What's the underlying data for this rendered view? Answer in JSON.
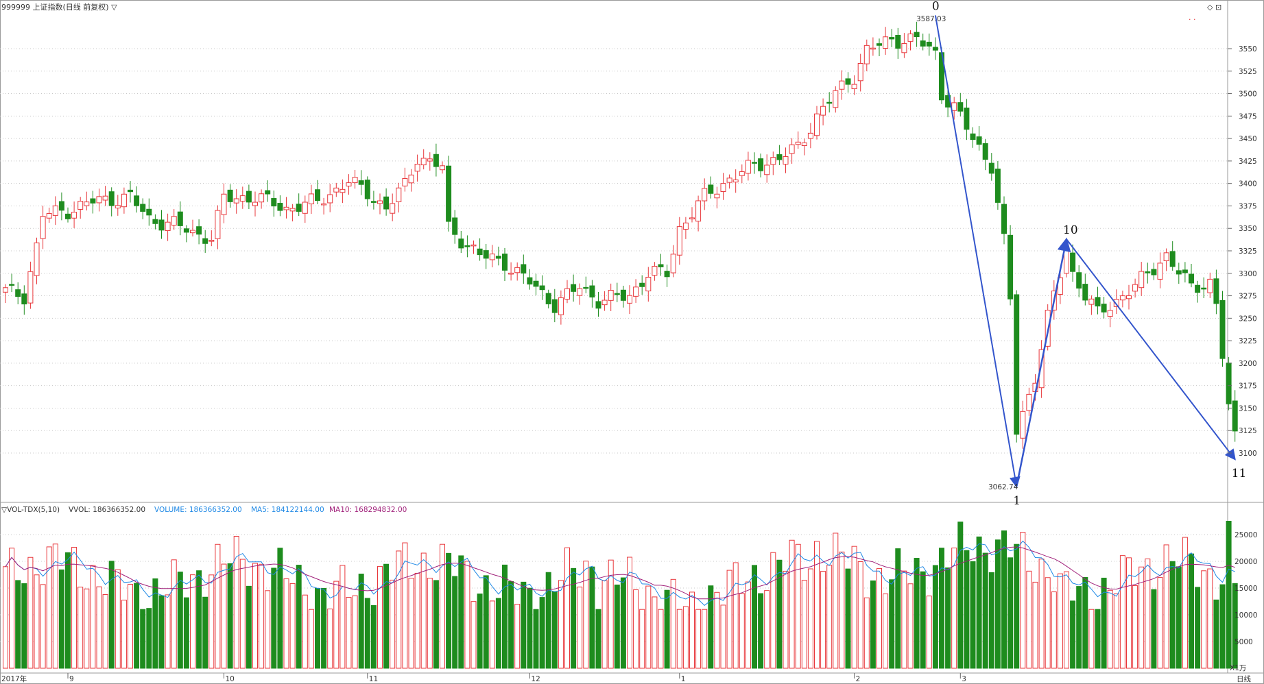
{
  "header": {
    "title": "999999 上证指数(日线 前复权) ▽",
    "corner_marks": "◇ ⊡",
    "dots": "·  ·"
  },
  "vol_header": {
    "prefix": "▽VOL-TDX(5,10)",
    "vvol": "VVOL: 186366352.00",
    "volume": "VOLUME: 186366352.00",
    "ma5": "MA5: 184122144.00",
    "ma10": "MA10: 168294832.00"
  },
  "footer": {
    "year_label": "2017年",
    "month_labels": [
      "9",
      "10",
      "11",
      "12",
      "1",
      "2",
      "3"
    ],
    "period": "日线",
    "vol_unit": "X1万"
  },
  "colors": {
    "up": "#e8373b",
    "down": "#1e8c1e",
    "grid": "#c8c8c8",
    "arrow": "#3355cc",
    "vol_line": "#1e88e5",
    "ma5": "#1e88e5",
    "ma10": "#a0207a"
  },
  "chart_data": {
    "type": "candlestick",
    "y_ticks": [
      3100,
      3125,
      3150,
      3175,
      3200,
      3225,
      3250,
      3275,
      3300,
      3325,
      3350,
      3375,
      3400,
      3425,
      3450,
      3475,
      3500,
      3525,
      3550
    ],
    "ylim": [
      3040,
      3600
    ],
    "vol_ticks": [
      5000,
      10000,
      15000,
      20000,
      25000
    ],
    "vol_ylim": [
      0,
      28500
    ],
    "annotations": {
      "high_label": "3587.03",
      "low_label": "3062.74",
      "wave_points": [
        {
          "label": "0",
          "index": 149,
          "price": 3587.03
        },
        {
          "label": "1",
          "index": 162,
          "price": 3062.74
        },
        {
          "label": "10",
          "index": 170,
          "price": 3338
        },
        {
          "label": "11",
          "index": 197,
          "price": 3093
        }
      ]
    }
  }
}
